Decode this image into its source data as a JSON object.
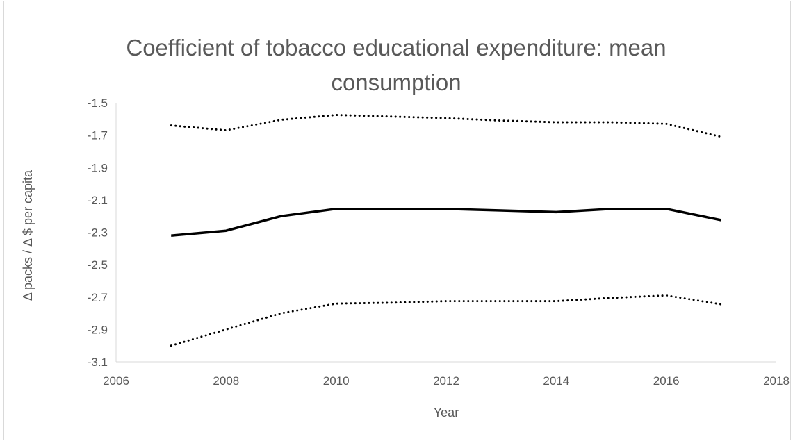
{
  "chart_data": {
    "type": "line",
    "title": "Coefficient of tobacco educational expenditure: mean consumption",
    "xlabel": "Year",
    "ylabel": "Δ packs / Δ $ per capita",
    "xlim": [
      2006,
      2018
    ],
    "ylim": [
      -3.1,
      -1.5
    ],
    "xticks": [
      2006,
      2008,
      2010,
      2012,
      2014,
      2016,
      2018
    ],
    "yticks": [
      -1.5,
      -1.7,
      -1.9,
      -2.1,
      -2.3,
      -2.5,
      -2.7,
      -2.9,
      -3.1
    ],
    "x": [
      2007,
      2008,
      2009,
      2010,
      2011,
      2012,
      2013,
      2014,
      2015,
      2016,
      2017
    ],
    "series": [
      {
        "style": "solid",
        "color": "#000000",
        "values": [
          -2.32,
          -2.29,
          -2.2,
          -2.155,
          -2.155,
          -2.155,
          -2.165,
          -2.175,
          -2.155,
          -2.155,
          -2.225
        ]
      },
      {
        "style": "dotted",
        "color": "#000000",
        "values": [
          -1.64,
          -1.67,
          -1.605,
          -1.575,
          -1.585,
          -1.595,
          -1.61,
          -1.62,
          -1.62,
          -1.63,
          -1.71
        ]
      },
      {
        "style": "dotted",
        "color": "#000000",
        "values": [
          -3.0,
          -2.9,
          -2.8,
          -2.74,
          -2.735,
          -2.725,
          -2.725,
          -2.725,
          -2.705,
          -2.69,
          -2.745
        ]
      }
    ],
    "grid": false,
    "legend": "none",
    "border_color": "#d9d9d9",
    "axis_color": "#d9d9d9"
  }
}
